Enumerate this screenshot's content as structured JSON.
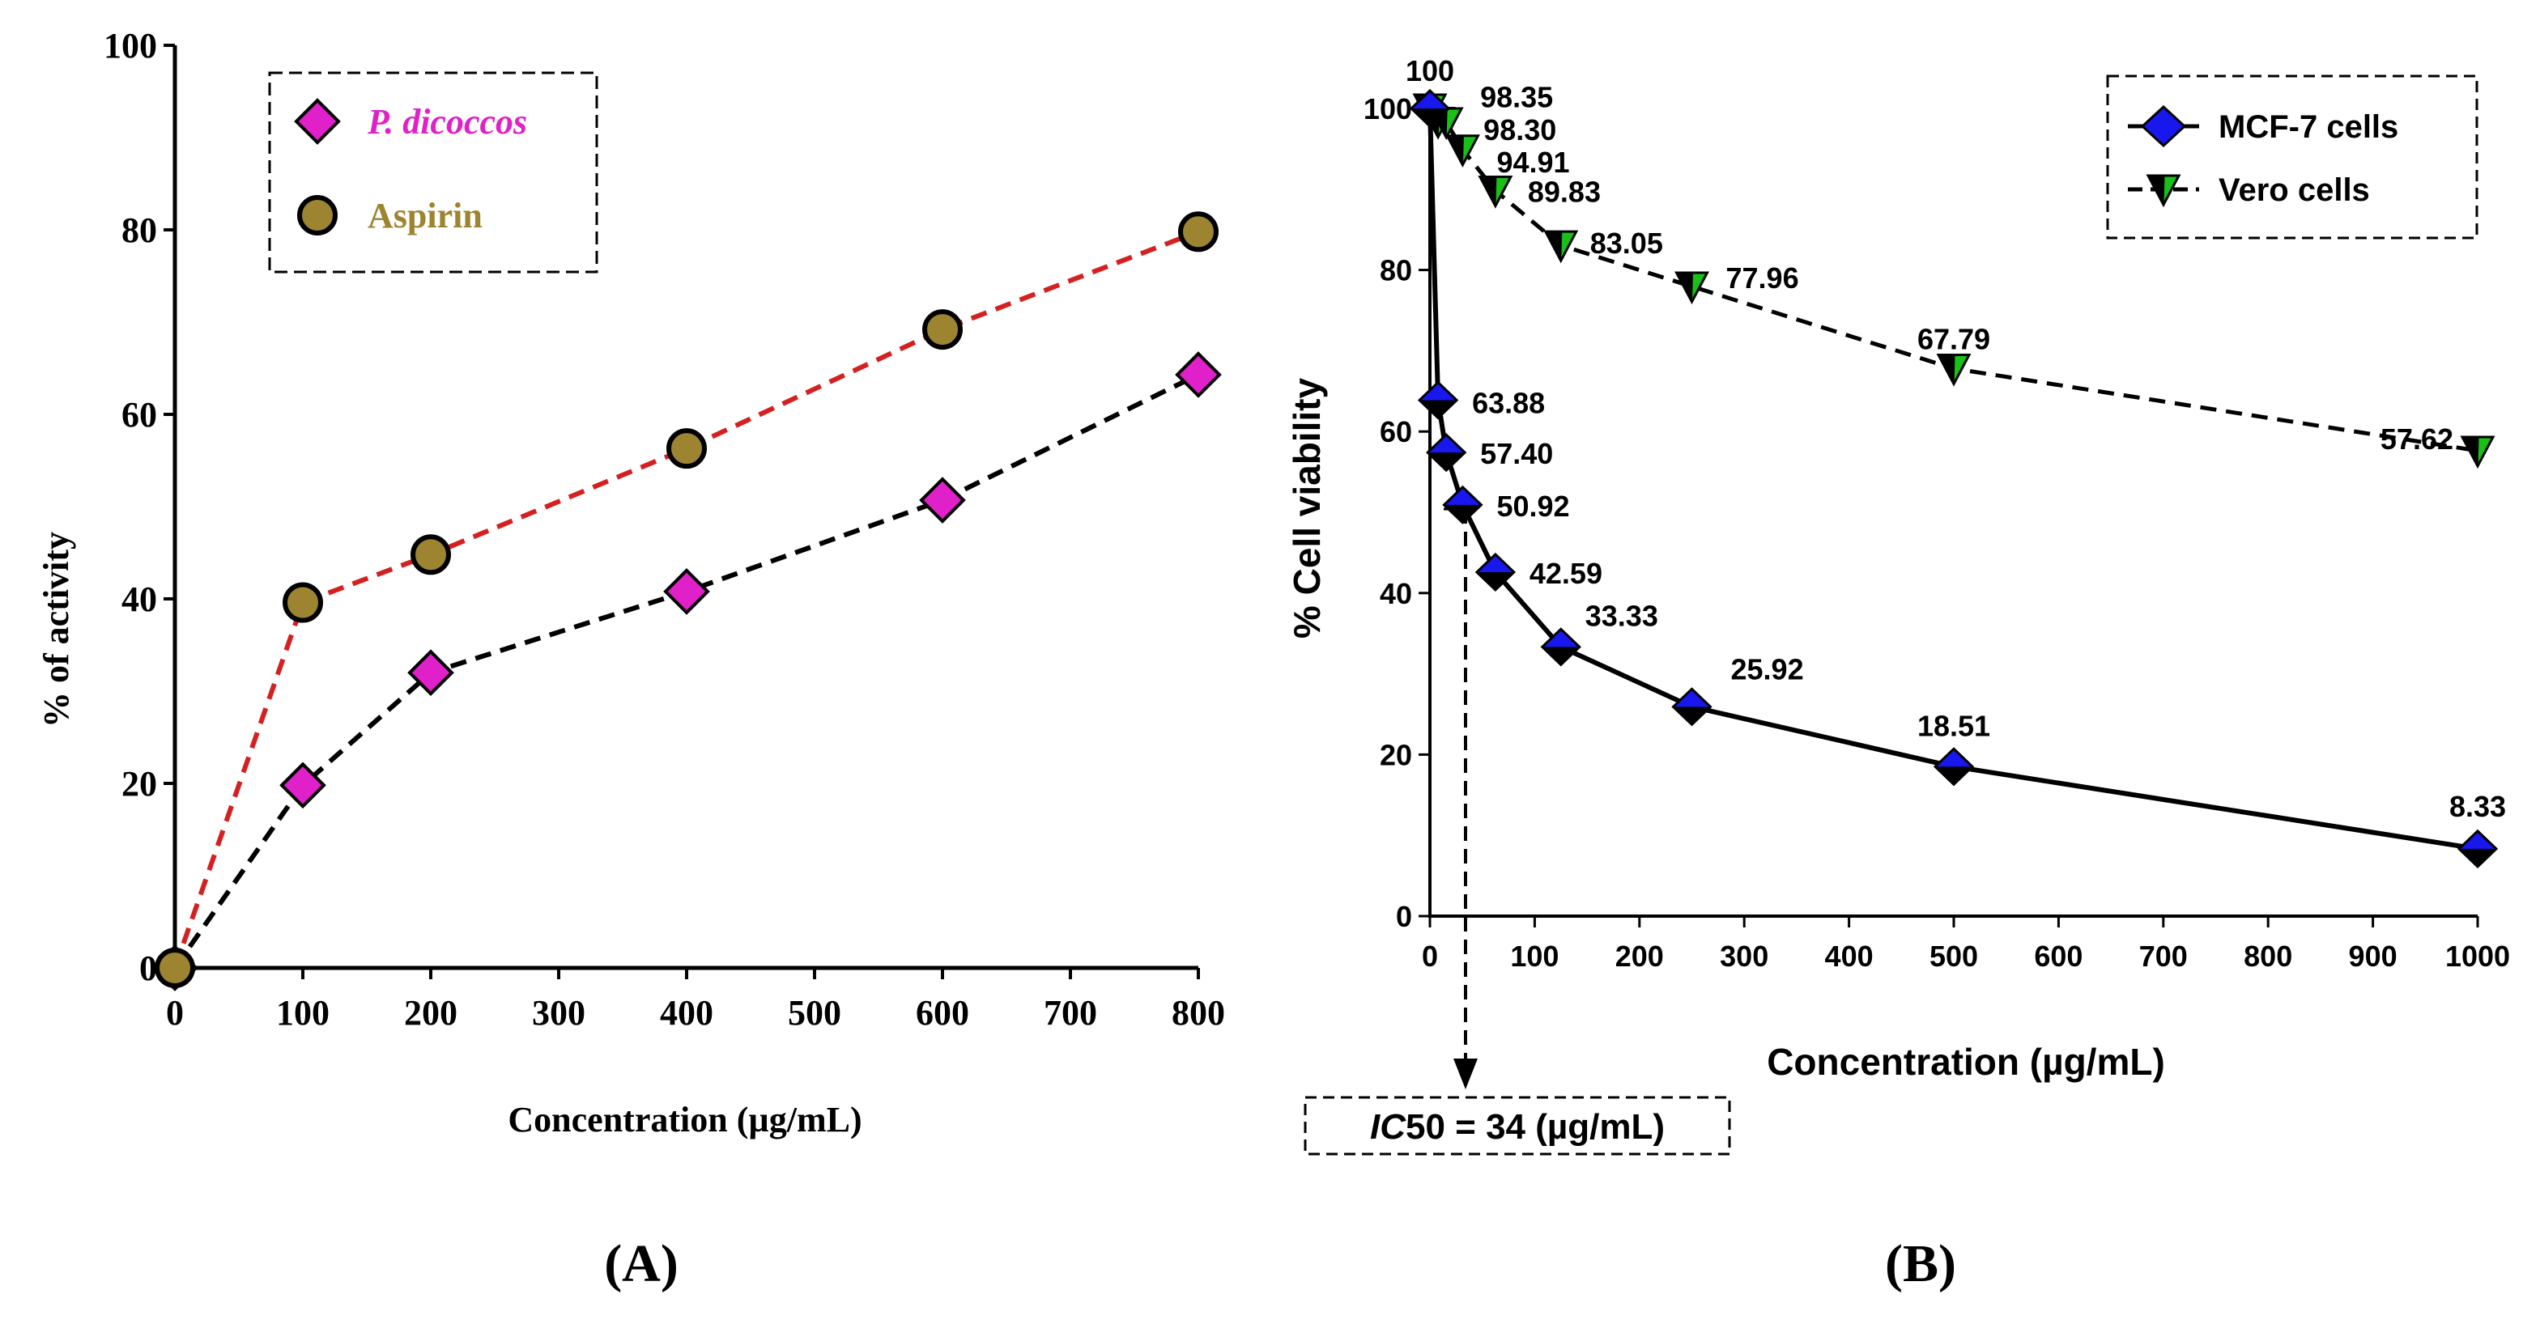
{
  "colors": {
    "pdicoccos_marker": "#e020c8",
    "pdicoccos_label": "#e020c8",
    "aspirin_marker": "#9c8430",
    "aspirin_label": "#9c8430",
    "aspirin_line": "#d42020",
    "black_line": "#000000",
    "mcf7_marker": "#1818ee",
    "vero_marker": "#18c018"
  },
  "chart_data": [
    {
      "panel_label": "(A)",
      "type": "line",
      "title": "",
      "xlabel": "Concentration (µg/mL)",
      "ylabel": "% of activity",
      "xlim": [
        0,
        800
      ],
      "ylim": [
        0,
        100
      ],
      "x_ticks": [
        "0",
        "100",
        "200",
        "300",
        "400",
        "500",
        "600",
        "700",
        "800"
      ],
      "y_ticks": [
        "0",
        "20",
        "40",
        "60",
        "80",
        "100"
      ],
      "grid": false,
      "legend_position": "top-left",
      "series": [
        {
          "name": "P. dicoccos",
          "marker": "diamond",
          "line_style": "dashed",
          "x": [
            0,
            100,
            200,
            400,
            600,
            800
          ],
          "values": [
            0,
            19.8,
            32.0,
            40.8,
            50.7,
            64.3
          ]
        },
        {
          "name": "Aspirin",
          "marker": "circle",
          "line_style": "dashed",
          "x": [
            0,
            100,
            200,
            400,
            600,
            800
          ],
          "values": [
            0,
            39.6,
            44.8,
            56.3,
            69.2,
            79.8
          ]
        }
      ]
    },
    {
      "panel_label": "(B)",
      "type": "line",
      "title": "",
      "xlabel": "Concentration (µg/mL)",
      "ylabel": "% Cell viability",
      "xlim": [
        0,
        1000
      ],
      "ylim": [
        0,
        100
      ],
      "x_ticks": [
        "0",
        "100",
        "200",
        "300",
        "400",
        "500",
        "600",
        "700",
        "800",
        "900",
        "1000"
      ],
      "y_ticks": [
        "0",
        "20",
        "40",
        "60",
        "80",
        "100"
      ],
      "grid": false,
      "legend_position": "top-right",
      "annotation": {
        "prefix": "IC",
        "rest": "50 = 34 (µg/mL)",
        "x": 34
      },
      "series": [
        {
          "name": "MCF-7 cells",
          "marker": "diamond",
          "line_style": "solid",
          "x": [
            0,
            7.8,
            15.6,
            31.25,
            62.5,
            125,
            250,
            500,
            1000
          ],
          "values": [
            100,
            63.88,
            57.4,
            50.92,
            42.59,
            33.33,
            25.92,
            18.51,
            8.33
          ],
          "labels": [
            "100",
            "63.88",
            "57.40",
            "50.92",
            "42.59",
            "33.33",
            "25.92",
            "18.51",
            "8.33"
          ]
        },
        {
          "name": "Vero cells",
          "marker": "triangle-down",
          "line_style": "dashed",
          "x": [
            0,
            7.8,
            15.6,
            31.25,
            62.5,
            125,
            250,
            500,
            1000
          ],
          "values": [
            100,
            98.35,
            98.3,
            94.91,
            89.83,
            83.05,
            77.96,
            67.79,
            57.62
          ],
          "labels": [
            "",
            "98.35",
            "98.30",
            "94.91",
            "89.83",
            "83.05",
            "77.96",
            "67.79",
            "57.62"
          ]
        }
      ]
    }
  ]
}
